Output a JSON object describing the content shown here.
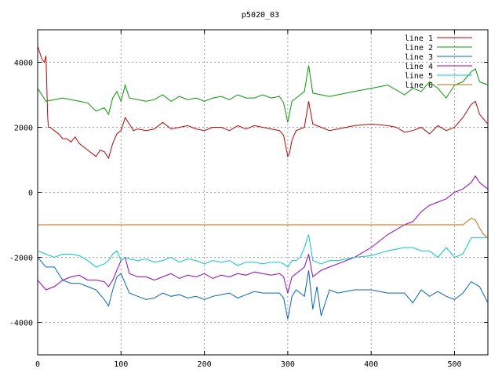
{
  "chart_data": {
    "type": "line",
    "title": "p5020_03",
    "xlabel": "",
    "ylabel": "",
    "xlim": [
      0,
      540
    ],
    "ylim": [
      -5000,
      5000
    ],
    "xticks": [
      0,
      100,
      200,
      300,
      400,
      500
    ],
    "yticks": [
      -4000,
      -2000,
      0,
      2000,
      4000
    ],
    "grid": true,
    "legend_position": "top-right",
    "series": [
      {
        "name": "line 1",
        "color": "#cc0000",
        "x": [
          0,
          5,
          8,
          10,
          12,
          13,
          15,
          20,
          25,
          30,
          35,
          40,
          45,
          50,
          55,
          60,
          65,
          70,
          75,
          80,
          85,
          90,
          95,
          100,
          105,
          110,
          115,
          120,
          130,
          140,
          150,
          155,
          160,
          170,
          180,
          190,
          200,
          210,
          220,
          230,
          240,
          250,
          260,
          270,
          280,
          290,
          295,
          300,
          302,
          305,
          310,
          315,
          320,
          325,
          330,
          340,
          350,
          360,
          380,
          400,
          420,
          430,
          440,
          450,
          460,
          470,
          480,
          490,
          500,
          510,
          520,
          525,
          530,
          540
        ],
        "y": [
          4500,
          4100,
          4000,
          4200,
          2300,
          2000,
          2000,
          1900,
          1800,
          1650,
          1650,
          1550,
          1700,
          1500,
          1400,
          1300,
          1200,
          1100,
          1300,
          1250,
          1050,
          1500,
          1800,
          1900,
          2300,
          2100,
          1900,
          1950,
          1900,
          1950,
          2150,
          2050,
          1950,
          2000,
          2050,
          1950,
          1900,
          2000,
          2000,
          1900,
          2050,
          1950,
          2050,
          2000,
          1950,
          1900,
          1750,
          1100,
          1200,
          1600,
          1900,
          1950,
          2000,
          2800,
          2100,
          2000,
          1900,
          1950,
          2050,
          2100,
          2050,
          2000,
          1850,
          1900,
          2000,
          1800,
          2050,
          1900,
          2000,
          2300,
          2700,
          2800,
          2400,
          2100
        ]
      },
      {
        "name": "line 2",
        "color": "#00a000",
        "x": [
          0,
          10,
          20,
          30,
          40,
          50,
          60,
          70,
          80,
          85,
          90,
          95,
          100,
          105,
          110,
          120,
          130,
          140,
          150,
          160,
          170,
          180,
          190,
          200,
          210,
          220,
          230,
          240,
          250,
          260,
          270,
          280,
          290,
          295,
          300,
          305,
          310,
          315,
          320,
          325,
          330,
          340,
          350,
          360,
          380,
          400,
          420,
          440,
          450,
          460,
          470,
          480,
          490,
          500,
          510,
          520,
          525,
          530,
          540
        ],
        "y": [
          3200,
          2800,
          2850,
          2900,
          2850,
          2800,
          2750,
          2500,
          2600,
          2400,
          2900,
          3100,
          2800,
          3300,
          2900,
          2850,
          2800,
          2850,
          3000,
          2800,
          2950,
          2850,
          2900,
          2800,
          2900,
          2950,
          2850,
          3000,
          2900,
          2900,
          3000,
          2900,
          2950,
          2750,
          2150,
          2800,
          2900,
          3000,
          3100,
          3900,
          3050,
          3000,
          2950,
          3000,
          3100,
          3200,
          3300,
          3000,
          3200,
          3100,
          3400,
          3200,
          2900,
          3300,
          3400,
          3700,
          3800,
          3400,
          3300
        ]
      },
      {
        "name": "line 3",
        "color": "#0066cc",
        "x": [
          0,
          10,
          20,
          30,
          40,
          50,
          60,
          70,
          80,
          85,
          90,
          95,
          100,
          105,
          110,
          120,
          130,
          140,
          150,
          160,
          170,
          180,
          190,
          200,
          210,
          220,
          230,
          240,
          250,
          260,
          270,
          280,
          290,
          295,
          300,
          305,
          310,
          315,
          320,
          325,
          330,
          335,
          340,
          350,
          360,
          380,
          400,
          420,
          440,
          450,
          460,
          470,
          480,
          490,
          500,
          510,
          520,
          530,
          540
        ],
        "y": [
          -2000,
          -2300,
          -2300,
          -2700,
          -2800,
          -2800,
          -2900,
          -3000,
          -3300,
          -3500,
          -3000,
          -2600,
          -2500,
          -2800,
          -3100,
          -3200,
          -3300,
          -3250,
          -3100,
          -3200,
          -3150,
          -3250,
          -3200,
          -3300,
          -3200,
          -3150,
          -3100,
          -3250,
          -3150,
          -3050,
          -3100,
          -3100,
          -3100,
          -3250,
          -3900,
          -3200,
          -3000,
          -3100,
          -3200,
          -2400,
          -3600,
          -2900,
          -3800,
          -3000,
          -3100,
          -3000,
          -3000,
          -3100,
          -3100,
          -3400,
          -3000,
          -3200,
          -3050,
          -3200,
          -3300,
          -3100,
          -2750,
          -2900,
          -3400
        ]
      },
      {
        "name": "line 4",
        "color": "#9900cc",
        "x": [
          0,
          10,
          20,
          30,
          40,
          50,
          60,
          70,
          80,
          85,
          90,
          95,
          100,
          105,
          110,
          120,
          130,
          140,
          150,
          160,
          170,
          180,
          190,
          200,
          210,
          220,
          230,
          240,
          250,
          260,
          270,
          280,
          290,
          295,
          300,
          305,
          310,
          315,
          320,
          325,
          330,
          340,
          350,
          360,
          380,
          400,
          420,
          440,
          450,
          460,
          470,
          480,
          490,
          500,
          510,
          520,
          525,
          530,
          540
        ],
        "y": [
          -2700,
          -3000,
          -2900,
          -2700,
          -2600,
          -2550,
          -2700,
          -2700,
          -2750,
          -2900,
          -2700,
          -2400,
          -2100,
          -2000,
          -2500,
          -2600,
          -2600,
          -2700,
          -2600,
          -2500,
          -2650,
          -2550,
          -2600,
          -2500,
          -2650,
          -2550,
          -2600,
          -2500,
          -2550,
          -2450,
          -2500,
          -2550,
          -2500,
          -2600,
          -3100,
          -2600,
          -2500,
          -2400,
          -2300,
          -1900,
          -2600,
          -2400,
          -2300,
          -2200,
          -2000,
          -1700,
          -1300,
          -1000,
          -900,
          -600,
          -400,
          -300,
          -200,
          0,
          100,
          300,
          500,
          300,
          100
        ]
      },
      {
        "name": "line 5",
        "color": "#00cccc",
        "x": [
          0,
          10,
          20,
          30,
          40,
          50,
          60,
          70,
          80,
          85,
          90,
          95,
          100,
          105,
          110,
          120,
          130,
          140,
          150,
          160,
          170,
          180,
          190,
          200,
          210,
          220,
          230,
          240,
          250,
          260,
          270,
          280,
          290,
          295,
          300,
          305,
          310,
          315,
          320,
          325,
          330,
          340,
          350,
          360,
          380,
          400,
          420,
          440,
          450,
          460,
          470,
          480,
          490,
          500,
          510,
          520,
          530,
          540
        ],
        "y": [
          -1800,
          -1900,
          -2000,
          -1900,
          -1900,
          -1950,
          -2100,
          -2300,
          -2200,
          -2100,
          -1900,
          -1800,
          -2100,
          -2000,
          -2050,
          -2100,
          -2050,
          -2150,
          -2100,
          -2000,
          -2150,
          -2050,
          -2100,
          -2200,
          -2100,
          -2150,
          -2100,
          -2250,
          -2150,
          -2150,
          -2200,
          -2150,
          -2150,
          -2200,
          -2300,
          -2100,
          -2100,
          -2000,
          -1700,
          -1300,
          -2100,
          -2200,
          -2100,
          -2100,
          -2000,
          -1950,
          -1800,
          -1700,
          -1700,
          -1800,
          -1800,
          -2000,
          -1700,
          -2000,
          -1900,
          -1400,
          -1400,
          -1400
        ]
      },
      {
        "name": "line 6",
        "color": "#cc6600",
        "x": [
          0,
          50,
          100,
          150,
          200,
          250,
          300,
          350,
          400,
          450,
          500,
          510,
          515,
          520,
          525,
          530,
          535,
          540
        ],
        "y": [
          -1000,
          -1000,
          -1000,
          -1000,
          -1000,
          -1000,
          -1000,
          -1000,
          -1000,
          -1000,
          -1000,
          -1000,
          -900,
          -800,
          -850,
          -1100,
          -1300,
          -1400
        ]
      }
    ]
  }
}
